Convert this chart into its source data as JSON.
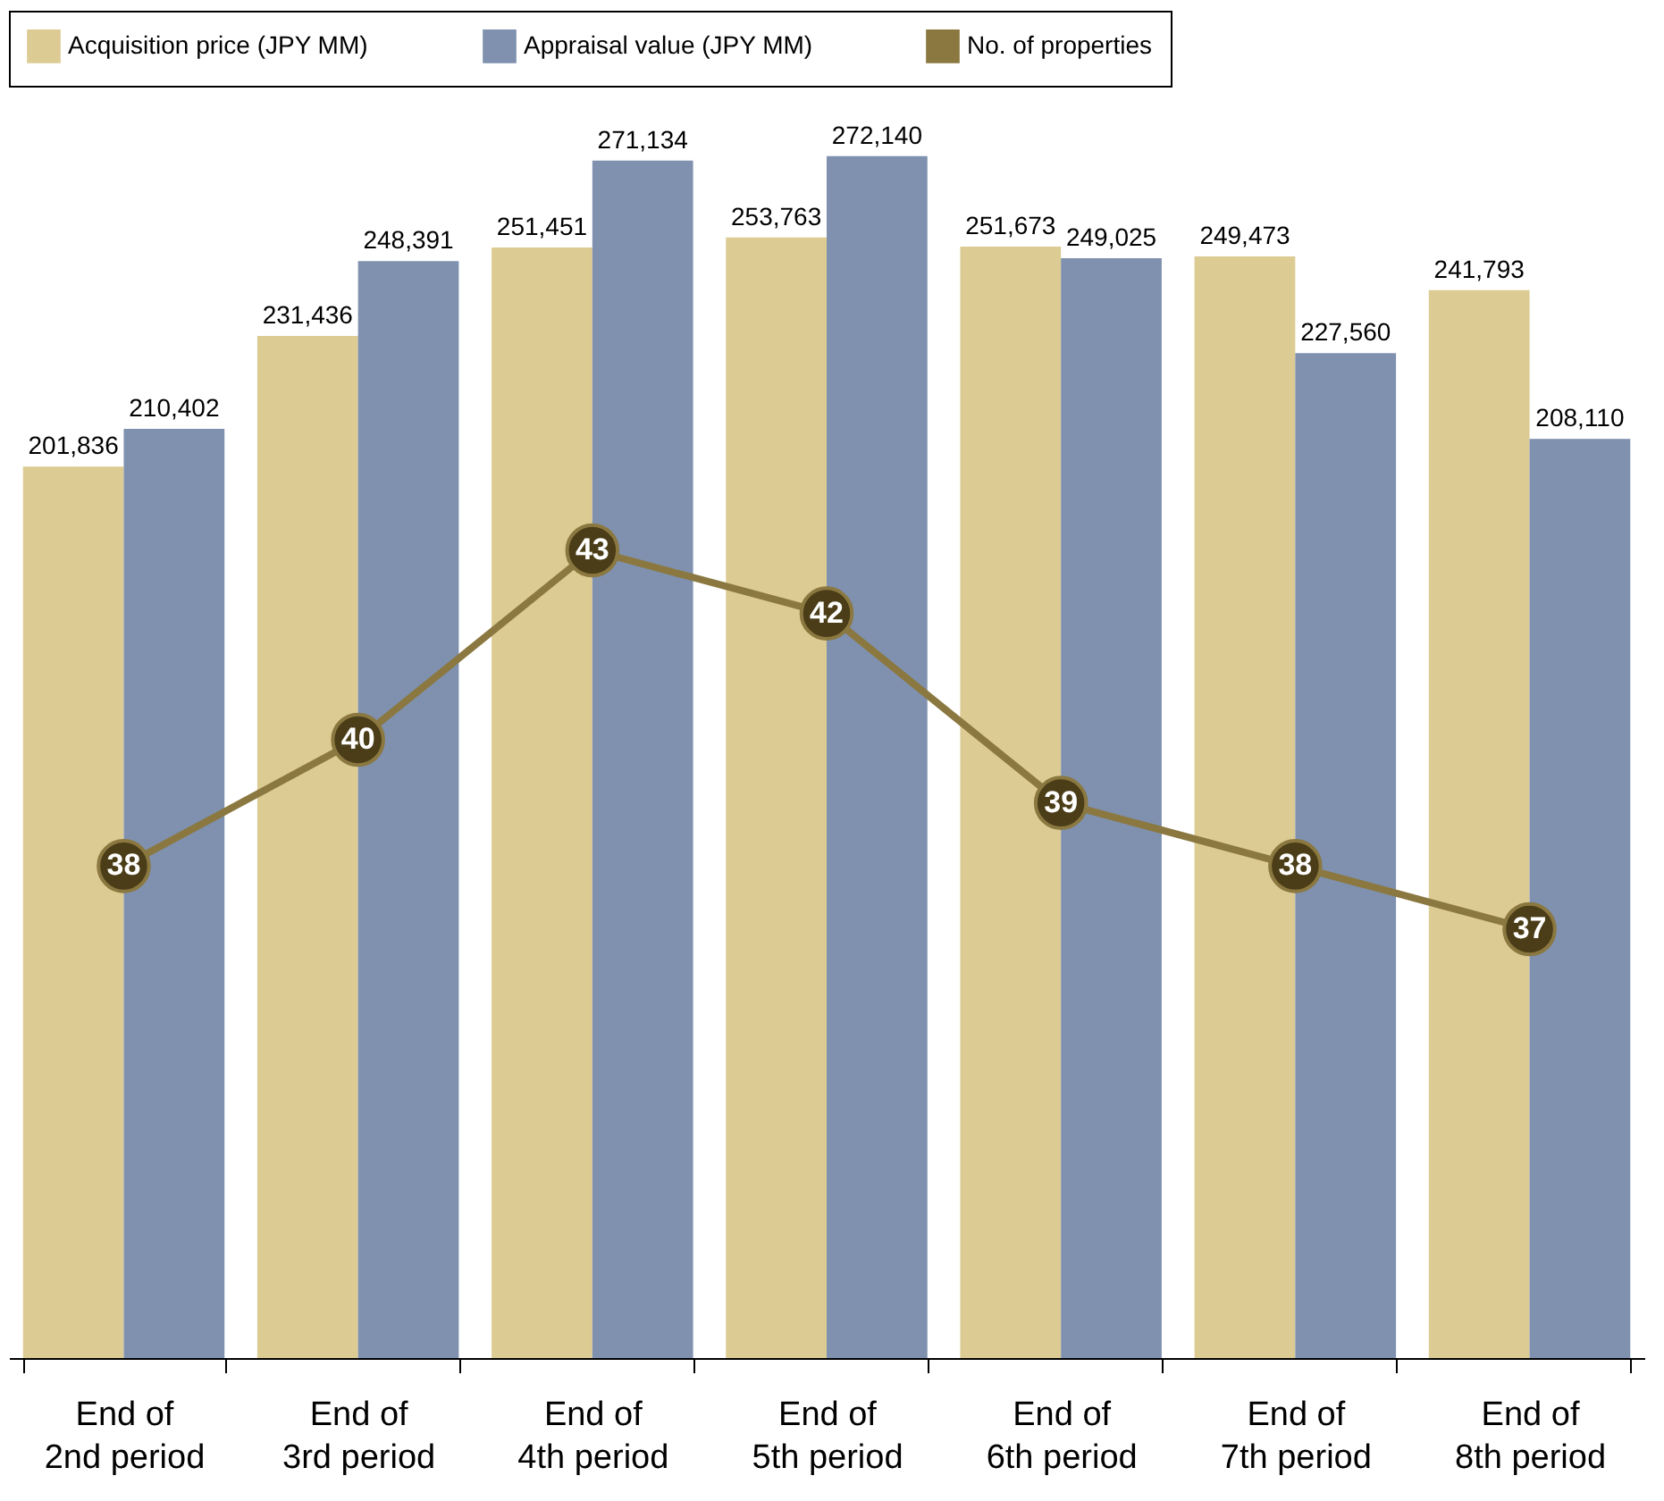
{
  "chart_data": {
    "type": "bar",
    "categories": [
      "End of 2nd period",
      "End of 3rd period",
      "End of 4th period",
      "End of 5th period",
      "End of 6th period",
      "End of 7th period",
      "End of 8th period"
    ],
    "series": [
      {
        "name": "Acquisition price (JPY MM)",
        "color": "#dccb93",
        "values": [
          201836,
          231436,
          251451,
          253763,
          251673,
          249473,
          241793
        ],
        "value_labels": [
          "201,836",
          "231,436",
          "251,451",
          "253,763",
          "251,673",
          "249,473",
          "241,793"
        ]
      },
      {
        "name": "Appraisal value (JPY MM)",
        "color": "#7f91ae",
        "values": [
          210402,
          248391,
          271134,
          272140,
          249025,
          227560,
          208110
        ],
        "value_labels": [
          "210,402",
          "248,391",
          "271,134",
          "272,140",
          "249,025",
          "227,560",
          "208,110"
        ]
      },
      {
        "name": "No. of properties",
        "type": "line",
        "axis": "y2",
        "color": "#8b7840",
        "values": [
          38,
          40,
          43,
          42,
          39,
          38,
          37
        ],
        "value_labels": [
          "38",
          "40",
          "43",
          "42",
          "39",
          "38",
          "37"
        ]
      }
    ],
    "legend": "top",
    "tick_labels": "x",
    "marker": "circle",
    "line_style": "solid"
  }
}
